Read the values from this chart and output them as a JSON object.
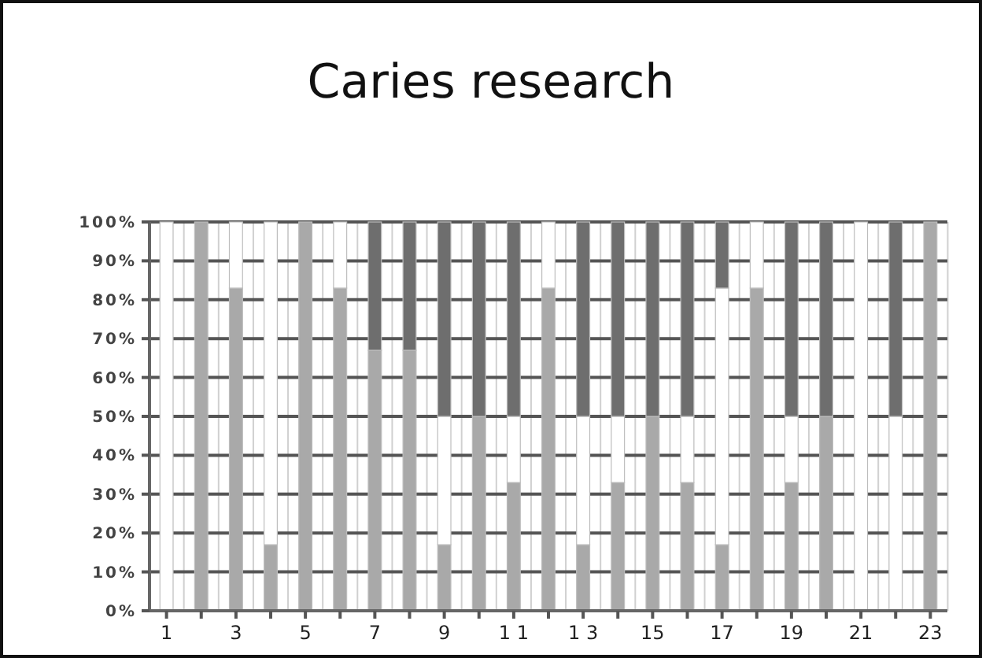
{
  "chart_data": {
    "type": "bar",
    "title": "Caries research",
    "stacked": true,
    "grid": true,
    "categories": [
      "1",
      null,
      "3",
      null,
      "5",
      null,
      "7",
      null,
      "9",
      null,
      "1 1",
      null,
      "1 3",
      null,
      "15",
      null,
      "17",
      null,
      "19",
      null,
      "21",
      null,
      "23"
    ],
    "series": [
      {
        "color": "#a9a9a9",
        "values": [
          0,
          100,
          83,
          17,
          100,
          83,
          67,
          67,
          17,
          50,
          33,
          83,
          17,
          33,
          50,
          33,
          17,
          83,
          33,
          50,
          0,
          0,
          100
        ]
      },
      {
        "color": "#ffffff",
        "values": [
          100,
          0,
          17,
          83,
          0,
          17,
          0,
          0,
          33,
          0,
          17,
          17,
          33,
          17,
          0,
          17,
          66,
          17,
          17,
          0,
          100,
          50,
          0
        ]
      },
      {
        "color": "#6e6e6e",
        "values": [
          0,
          0,
          0,
          0,
          0,
          0,
          33,
          33,
          50,
          50,
          50,
          0,
          50,
          50,
          50,
          50,
          17,
          0,
          50,
          50,
          0,
          50,
          0
        ]
      }
    ],
    "ylim": [
      0,
      100
    ],
    "yticks": [
      {
        "value": 0,
        "label": "0%"
      },
      {
        "value": 10,
        "label": "10%"
      },
      {
        "value": 20,
        "label": "20%"
      },
      {
        "value": 30,
        "label": "30%"
      },
      {
        "value": 40,
        "label": "40%"
      },
      {
        "value": 50,
        "label": "50%"
      },
      {
        "value": 60,
        "label": "60%"
      },
      {
        "value": 70,
        "label": "70%"
      },
      {
        "value": 80,
        "label": "80%"
      },
      {
        "value": 90,
        "label": "90%"
      },
      {
        "value": 100,
        "label": "100%"
      }
    ]
  }
}
